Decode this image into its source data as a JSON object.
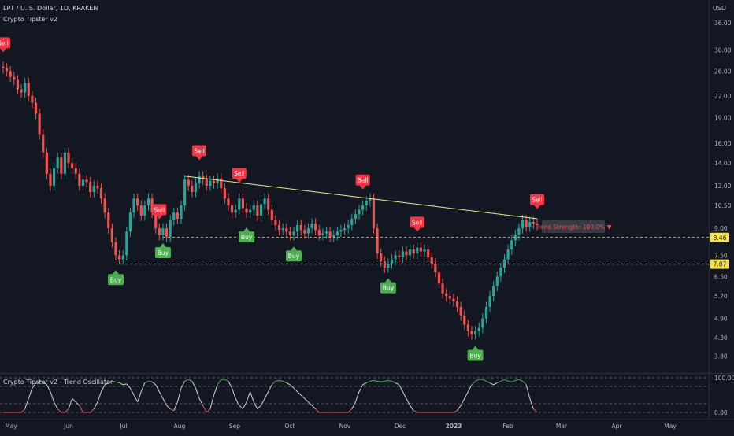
{
  "header": {
    "symbol": "LPT / U. S. Dollar, 1D, KRAKEN",
    "indicator": "Crypto Tipster v2",
    "currency": "USD"
  },
  "oscillator": {
    "title": "Crypto Tipster v2 - Trend Oscillator",
    "ticks": [
      "100.00",
      "0.00"
    ],
    "levels": [
      100,
      75,
      25,
      0
    ],
    "values": [
      0,
      0,
      0,
      0,
      0,
      0,
      10,
      40,
      70,
      85,
      90,
      88,
      80,
      60,
      30,
      10,
      0,
      0,
      10,
      40,
      30,
      20,
      0,
      0,
      0,
      10,
      30,
      60,
      80,
      85,
      90,
      88,
      85,
      80,
      82,
      70,
      50,
      30,
      60,
      85,
      90,
      88,
      80,
      60,
      40,
      20,
      10,
      5,
      30,
      70,
      90,
      95,
      90,
      70,
      40,
      20,
      0,
      10,
      50,
      80,
      95,
      95,
      90,
      70,
      40,
      20,
      10,
      30,
      60,
      30,
      10,
      20,
      40,
      60,
      80,
      90,
      92,
      90,
      85,
      80,
      70,
      60,
      50,
      40,
      30,
      20,
      10,
      0,
      0,
      0,
      0,
      0,
      0,
      0,
      0,
      0,
      10,
      30,
      60,
      80,
      85,
      90,
      92,
      90,
      88,
      90,
      92,
      90,
      85,
      80,
      60,
      40,
      20,
      5,
      0,
      0,
      0,
      0,
      0,
      0,
      0,
      0,
      0,
      0,
      0,
      5,
      20,
      40,
      60,
      80,
      90,
      95,
      95,
      90,
      85,
      80,
      85,
      90,
      95,
      90,
      88,
      92,
      95,
      90,
      80,
      40,
      10,
      0
    ]
  },
  "colors": {
    "up": "#26a69a",
    "down": "#ef5350",
    "sell_label": "#f23645",
    "buy_label": "#4caf50",
    "trendline": "#f0e68c",
    "level_line": "#f5e050",
    "osc_up": "#4caf50",
    "osc_down": "#ef5350",
    "osc_mid": "#d1d4dc"
  },
  "chart_data": {
    "type": "candlestick",
    "title": "LPT / U. S. Dollar, 1D, KRAKEN",
    "x_tick_labels": [
      "May",
      "Jun",
      "Jul",
      "Aug",
      "Sep",
      "Oct",
      "Nov",
      "Dec",
      "2023",
      "Feb",
      "Mar",
      "Apr",
      "May"
    ],
    "y_scale": "log",
    "y_tick_labels": [
      "36.00",
      "30.00",
      "26.00",
      "22.00",
      "19.00",
      "16.00",
      "14.00",
      "12.00",
      "10.50",
      "9.00",
      "7.50",
      "6.50",
      "5.70",
      "4.90",
      "4.30",
      "3.80"
    ],
    "y_ticks": [
      36,
      30,
      26,
      22,
      19,
      16,
      14,
      12,
      10.5,
      9,
      7.5,
      6.5,
      5.7,
      4.9,
      4.3,
      3.8
    ],
    "ylim": [
      3.5,
      42
    ],
    "price_markers": [
      {
        "value": 8.46,
        "label": "8.46"
      },
      {
        "value": 7.07,
        "label": "7.07"
      }
    ],
    "trend_strength_label": "Trend Strength: 100.0% ▼",
    "close": [
      26.5,
      26.0,
      25.0,
      24.5,
      23.0,
      22.5,
      24.0,
      22.0,
      21.0,
      19.5,
      17.0,
      15.0,
      13.0,
      12.0,
      13.5,
      14.5,
      13.0,
      15.0,
      14.0,
      13.5,
      13.0,
      12.0,
      12.5,
      12.3,
      11.5,
      12.0,
      11.8,
      11.0,
      10.0,
      9.0,
      8.2,
      7.5,
      7.3,
      7.5,
      8.8,
      10.0,
      11.0,
      10.5,
      9.8,
      10.5,
      11.0,
      10.0,
      9.0,
      8.6,
      9.0,
      8.5,
      9.5,
      10.0,
      9.6,
      10.5,
      12.5,
      12.0,
      11.5,
      12.2,
      12.8,
      12.5,
      12.0,
      12.4,
      12.2,
      12.6,
      11.8,
      11.0,
      10.5,
      10.0,
      10.2,
      11.0,
      10.3,
      10.0,
      10.2,
      10.5,
      9.8,
      10.6,
      11.0,
      10.2,
      9.5,
      9.2,
      8.9,
      9.0,
      8.8,
      8.6,
      8.8,
      9.2,
      8.9,
      8.7,
      9.0,
      9.3,
      8.9,
      8.6,
      8.7,
      8.8,
      8.5,
      8.6,
      8.8,
      8.9,
      9.0,
      9.2,
      9.6,
      9.9,
      10.2,
      10.5,
      10.8,
      11.0,
      9.0,
      7.6,
      7.2,
      6.9,
      7.1,
      7.3,
      7.5,
      7.4,
      7.7,
      7.5,
      7.8,
      7.6,
      7.9,
      7.7,
      7.8,
      7.4,
      7.1,
      6.7,
      6.2,
      5.8,
      5.7,
      5.6,
      5.5,
      5.3,
      5.0,
      4.7,
      4.5,
      4.4,
      4.5,
      4.6,
      4.9,
      5.3,
      5.7,
      6.1,
      6.5,
      6.9,
      7.3,
      7.8,
      8.3,
      8.6,
      9.0,
      9.5,
      9.1,
      9.4,
      9.3,
      9.2
    ],
    "annotations": [
      {
        "text": "Sell",
        "at": 0
      },
      {
        "text": "Sell",
        "at": 43
      },
      {
        "text": "Buy",
        "at": 31
      },
      {
        "text": "Buy",
        "at": 44
      },
      {
        "text": "Sell",
        "at": 54
      },
      {
        "text": "Sell",
        "at": 65
      },
      {
        "text": "Buy",
        "at": 67
      },
      {
        "text": "Buy",
        "at": 80
      },
      {
        "text": "Sell",
        "at": 99
      },
      {
        "text": "Buy",
        "at": 106
      },
      {
        "text": "Sell",
        "at": 114
      },
      {
        "text": "Buy",
        "at": 130
      },
      {
        "text": "Sell",
        "at": 147
      }
    ]
  }
}
